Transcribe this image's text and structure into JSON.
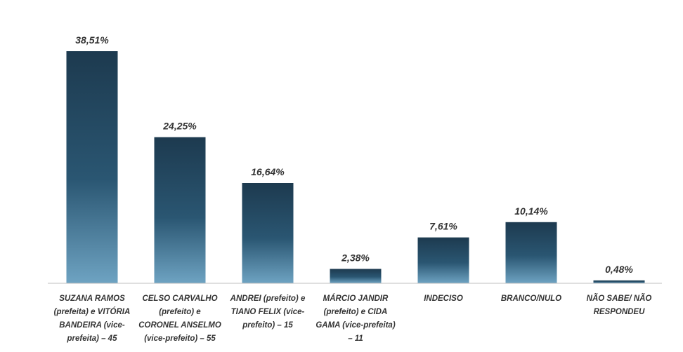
{
  "chart_data": {
    "type": "bar",
    "categories": [
      [
        "SUZANA RAMOS",
        "(prefeita) e VITÓRIA",
        "BANDEIRA (vice-",
        "prefeita) – 45"
      ],
      [
        "CELSO CARVALHO",
        "(prefeito) e",
        "CORONEL ANSELMO",
        "(vice-prefeito) – 55"
      ],
      [
        "ANDREI (prefeito) e",
        "TIANO FELIX (vice-",
        "prefeito) – 15"
      ],
      [
        "MÁRCIO JANDIR",
        "(prefeito) e CIDA",
        "GAMA (vice-prefeita)",
        "– 11"
      ],
      [
        "INDECISO"
      ],
      [
        "BRANCO/NULO"
      ],
      [
        "NÃO SABE/ NÃO",
        "RESPONDEU"
      ]
    ],
    "values": [
      38.51,
      24.25,
      16.64,
      2.38,
      7.61,
      10.14,
      0.48
    ],
    "value_labels": [
      "38,51%",
      "24,25%",
      "16,64%",
      "2,38%",
      "7,61%",
      "10,14%",
      "0,48%"
    ],
    "ylim": [
      0,
      40
    ],
    "grid": false,
    "legend": "none",
    "colors": {
      "bar_top": "#1d3a4f",
      "bar_mid": "#2a5672",
      "bar_bottom": "#6ea3c2",
      "axis": "#bfbfbf",
      "text": "#333333"
    }
  }
}
